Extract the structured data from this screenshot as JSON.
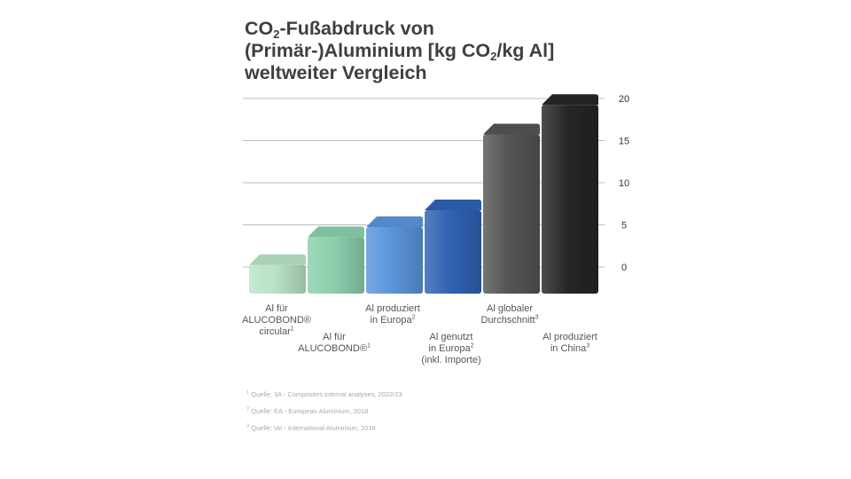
{
  "title": {
    "line1_pre": "CO",
    "line1_sub": "2",
    "line1_post": "-Fußabdruck von",
    "line2_pre": "(Primär-)Aluminium [kg CO",
    "line2_sub": "2",
    "line2_post": "/kg Al]",
    "line3": "weltweiter Vergleich"
  },
  "categories": [
    {
      "line1": "Al für",
      "line2": "ALUCOBOND®",
      "line3": "circular",
      "sup": "1"
    },
    {
      "line1": "Al für",
      "line2": "ALUCOBOND®",
      "line3": "",
      "sup": "1"
    },
    {
      "line1": "Al produziert",
      "line2": "in Europa",
      "line3": "",
      "sup": "2"
    },
    {
      "line1": "Al genutzt",
      "line2": "in Europa",
      "line3": "(inkl. Importe)",
      "sup": "2"
    },
    {
      "line1": "Al globaler",
      "line2": "Durchschnitt",
      "line3": "",
      "sup": "3"
    },
    {
      "line1": "Al produziert",
      "line2": "in China",
      "line3": "",
      "sup": "3"
    }
  ],
  "footnotes": [
    {
      "num": "1",
      "text": "Quelle: 3A - Composites internal analyses, 2022/23"
    },
    {
      "num": "2",
      "text": "Quelle: EA - European Aluminium, 2018"
    },
    {
      "num": "3",
      "text": "Quelle: IAI - International Aluminium, 2018"
    }
  ],
  "chart_data": {
    "type": "bar",
    "categories": [
      "Al für ALUCOBOND® circular",
      "Al für ALUCOBOND®",
      "Al produziert in Europa",
      "Al genutzt in Europa (inkl. Importe)",
      "Al globaler Durchschnitt",
      "Al produziert in China"
    ],
    "values": [
      1.5,
      4.8,
      6.0,
      8.0,
      17.0,
      20.5
    ],
    "colors": [
      "#b9e3c7",
      "#8bd0ad",
      "#5a95da",
      "#2f62b4",
      "#555555",
      "#262626"
    ],
    "ylim": [
      0,
      20
    ],
    "yticks": [
      0,
      5,
      10,
      15,
      20
    ],
    "yaxis_position": "right",
    "grid": true
  }
}
